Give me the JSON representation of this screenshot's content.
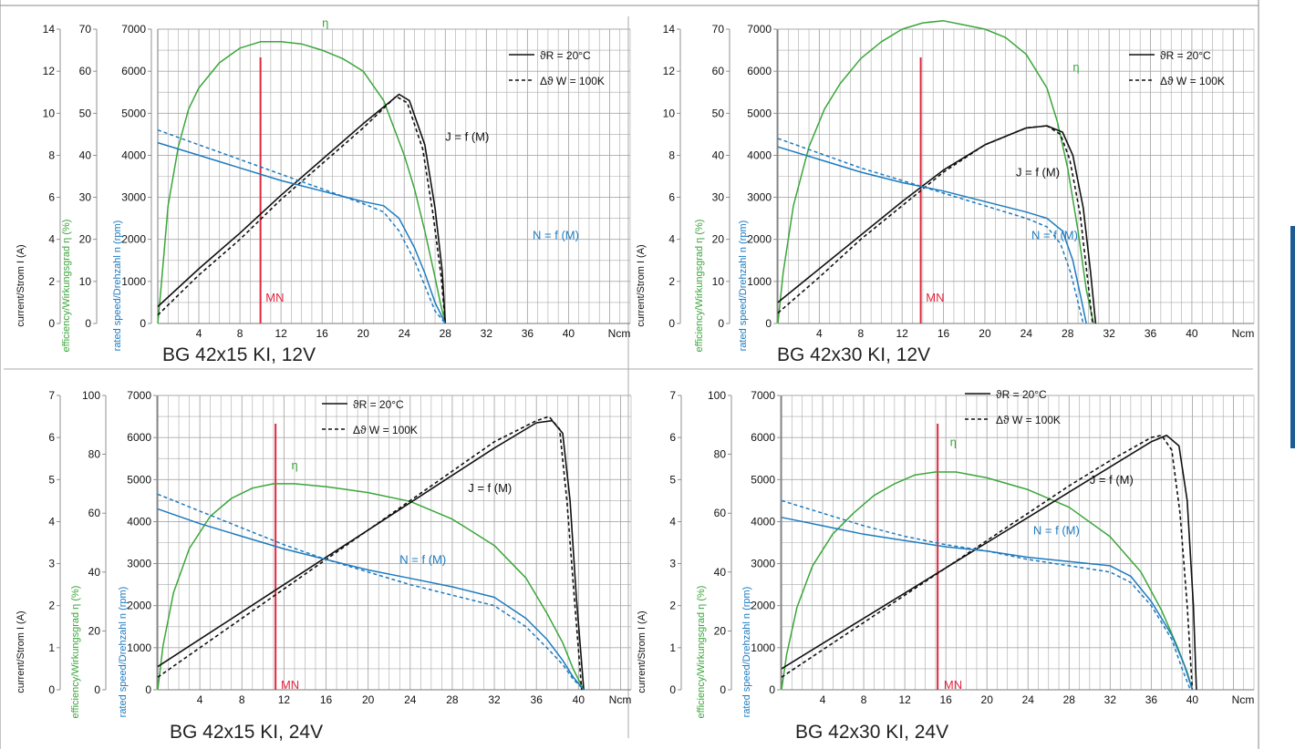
{
  "chart_data": [
    {
      "type": "line",
      "title": "BG 42x15 KI, 12V",
      "x_unit": "Ncm",
      "x_ticks": [
        "4",
        "8",
        "12",
        "16",
        "20",
        "24",
        "28",
        "32",
        "36",
        "40"
      ],
      "xlim": [
        0,
        46
      ],
      "axes": {
        "current": {
          "label": "current/Strom I (A)",
          "ticks": [
            "0",
            "2",
            "4",
            "6",
            "8",
            "10",
            "12",
            "14"
          ],
          "max": 14
        },
        "efficiency": {
          "label": "efficiency/Wirkungsgrad η (%)",
          "ticks": [
            "0",
            "10",
            "20",
            "30",
            "40",
            "50",
            "60",
            "70"
          ],
          "max": 70
        },
        "speed": {
          "label": "rated speed/Drehzahl n (rpm)",
          "ticks": [
            "0",
            "1000",
            "2000",
            "3000",
            "4000",
            "5000",
            "6000",
            "7000"
          ],
          "max": 7000
        }
      },
      "legend": {
        "solid": "ϑR = 20°C",
        "dashed": "Δϑ W = 100K",
        "position": "top-right"
      },
      "rated_torque": {
        "label": "MN",
        "x": 10
      },
      "annotations": {
        "efficiency": "η",
        "current": "J = f (M)",
        "speed": "N = f (M)"
      },
      "series": [
        {
          "name": "η",
          "axis": "efficiency",
          "style": "solid",
          "x": [
            0,
            0.3,
            1,
            2,
            3,
            4,
            6,
            8,
            10,
            12,
            14,
            16,
            18,
            20,
            22,
            24,
            25,
            26,
            27,
            27.5,
            28
          ],
          "y": [
            0,
            8,
            28,
            42,
            51,
            56,
            62,
            65.5,
            67,
            67,
            66.5,
            65,
            63,
            60,
            53,
            40,
            32,
            22,
            11,
            5,
            0
          ]
        },
        {
          "name": "J = f (M)",
          "axis": "current",
          "style": "solid",
          "x": [
            0,
            4,
            8,
            12,
            16,
            20,
            23.5,
            24.5,
            26,
            27,
            27.7,
            28
          ],
          "y": [
            0.8,
            2.6,
            4.3,
            6.1,
            7.8,
            9.5,
            10.9,
            10.6,
            8.5,
            5.5,
            2.5,
            0
          ]
        },
        {
          "name": "J = f (M)",
          "axis": "current",
          "style": "dashed",
          "x": [
            0,
            4,
            8,
            12,
            16,
            20,
            23.2,
            24.3,
            25.8,
            26.8,
            27.6,
            28
          ],
          "y": [
            0.4,
            2.3,
            4.0,
            5.9,
            7.6,
            9.3,
            10.8,
            10.5,
            8.3,
            5.2,
            2.2,
            0
          ]
        },
        {
          "name": "N = f (M)",
          "axis": "speed",
          "style": "solid",
          "x": [
            0,
            4,
            8,
            12,
            16,
            20,
            22,
            23.5,
            25,
            26,
            27,
            28
          ],
          "y": [
            4300,
            4000,
            3700,
            3400,
            3150,
            2900,
            2800,
            2500,
            1800,
            1200,
            500,
            0
          ]
        },
        {
          "name": "N = f (M)",
          "axis": "speed",
          "style": "dashed",
          "x": [
            0,
            4,
            8,
            12,
            16,
            20,
            22,
            23.5,
            25,
            26,
            27,
            28
          ],
          "y": [
            4600,
            4250,
            3900,
            3550,
            3200,
            2850,
            2650,
            2200,
            1500,
            900,
            300,
            0
          ]
        }
      ]
    },
    {
      "type": "line",
      "title": "BG 42x30 KI, 12V",
      "x_unit": "Ncm",
      "x_ticks": [
        "4",
        "8",
        "12",
        "16",
        "20",
        "24",
        "28",
        "32",
        "36",
        "40"
      ],
      "xlim": [
        0,
        46
      ],
      "axes": {
        "current": {
          "label": "current/Strom I (A)",
          "ticks": [
            "0",
            "2",
            "4",
            "6",
            "8",
            "10",
            "12",
            "14"
          ],
          "max": 14
        },
        "efficiency": {
          "label": "efficiency/Wirkungsgrad η (%)",
          "ticks": [
            "0",
            "10",
            "20",
            "30",
            "40",
            "50",
            "60",
            "70"
          ],
          "max": 70
        },
        "speed": {
          "label": "rated speed/Drehzahl n (rpm)",
          "ticks": [
            "0",
            "1000",
            "2000",
            "3000",
            "4000",
            "5000",
            "6000",
            "7000"
          ],
          "max": 7000
        }
      },
      "legend": {
        "solid": "ϑR = 20°C",
        "dashed": "Δϑ W = 100K",
        "position": "top-right"
      },
      "rated_torque": {
        "label": "MN",
        "x": 13.8
      },
      "annotations": {
        "efficiency": "η",
        "current": "J = f (M)",
        "speed": "N = f (M)"
      },
      "series": [
        {
          "name": "η",
          "axis": "efficiency",
          "style": "solid",
          "x": [
            0,
            0.5,
            1.5,
            3,
            4.5,
            6,
            8,
            10,
            12,
            14,
            16,
            18,
            20,
            22,
            24,
            26,
            27,
            28,
            29,
            29.8,
            30.5
          ],
          "y": [
            0,
            12,
            28,
            42,
            51,
            57,
            63,
            67,
            70,
            71.5,
            72,
            71,
            70,
            68,
            64,
            56,
            48,
            37,
            22,
            8,
            0
          ]
        },
        {
          "name": "J = f (M)",
          "axis": "current",
          "style": "solid",
          "x": [
            0,
            4,
            8,
            12,
            16,
            20,
            24,
            26,
            27.5,
            28.5,
            29.5,
            30.2,
            30.7
          ],
          "y": [
            1,
            2.6,
            4.2,
            5.8,
            7.3,
            8.5,
            9.3,
            9.4,
            9.1,
            8,
            5.5,
            2.5,
            0
          ]
        },
        {
          "name": "J = f (M)",
          "axis": "current",
          "style": "dashed",
          "x": [
            0,
            4,
            8,
            12,
            16,
            20,
            24,
            26,
            27.3,
            28.2,
            29.2,
            29.9,
            30.4
          ],
          "y": [
            0.5,
            2.2,
            4.0,
            5.6,
            7.2,
            8.5,
            9.3,
            9.4,
            9.0,
            7.8,
            5.2,
            2.2,
            0
          ]
        },
        {
          "name": "N = f (M)",
          "axis": "speed",
          "style": "solid",
          "x": [
            0,
            4,
            8,
            12,
            16,
            20,
            24,
            26,
            27.5,
            28.5,
            29.2,
            29.8
          ],
          "y": [
            4200,
            3900,
            3600,
            3350,
            3150,
            2900,
            2650,
            2500,
            2200,
            1500,
            700,
            0
          ]
        },
        {
          "name": "N = f (M)",
          "axis": "speed",
          "style": "dashed",
          "x": [
            0,
            4,
            8,
            12,
            16,
            20,
            24,
            26,
            27.3,
            28.3,
            29,
            29.5
          ],
          "y": [
            4400,
            4050,
            3700,
            3400,
            3100,
            2800,
            2500,
            2300,
            1900,
            1200,
            500,
            0
          ]
        }
      ]
    },
    {
      "type": "line",
      "title": "BG 42x15 KI, 24V",
      "x_unit": "Ncm",
      "x_ticks": [
        "4",
        "8",
        "12",
        "16",
        "20",
        "24",
        "28",
        "32",
        "36",
        "40"
      ],
      "xlim": [
        0,
        45
      ],
      "axes": {
        "current": {
          "label": "current/Strom I (A)",
          "ticks": [
            "0",
            "1",
            "2",
            "3",
            "4",
            "5",
            "6",
            "7"
          ],
          "max": 7
        },
        "efficiency": {
          "label": "efficiency/Wirkungsgrad η (%)",
          "ticks": [
            "0",
            "20",
            "40",
            "60",
            "80",
            "100"
          ],
          "max": 100
        },
        "speed": {
          "label": "rated speed/Drehzahl n (rpm)",
          "ticks": [
            "0",
            "1000",
            "2000",
            "3000",
            "4000",
            "5000",
            "6000",
            "7000"
          ],
          "max": 7000
        }
      },
      "legend": {
        "solid": "ϑR = 20°C",
        "dashed": "Δϑ W = 100K",
        "position": "top-center"
      },
      "rated_torque": {
        "label": "MN",
        "x": 11.2
      },
      "annotations": {
        "efficiency": "η",
        "current": "J = f (M)",
        "speed": "N = f (M)"
      },
      "series": [
        {
          "name": "η",
          "axis": "efficiency",
          "style": "solid",
          "x": [
            0,
            0.5,
            1.5,
            3,
            5,
            7,
            9,
            11,
            13,
            16,
            20,
            24,
            28,
            32,
            35,
            37,
            38.5,
            39.5,
            40.5
          ],
          "y": [
            0,
            15,
            33,
            48,
            59,
            65,
            68.5,
            70,
            70,
            69,
            67,
            64,
            58,
            49,
            38,
            26,
            16,
            7,
            0
          ]
        },
        {
          "name": "J = f (M)",
          "axis": "current",
          "style": "solid",
          "x": [
            0,
            4,
            8,
            12,
            16,
            20,
            24,
            28,
            32,
            36,
            37.5,
            38.5,
            39.2,
            39.8,
            40.5
          ],
          "y": [
            0.55,
            1.2,
            1.85,
            2.5,
            3.15,
            3.8,
            4.45,
            5.1,
            5.75,
            6.35,
            6.4,
            6.1,
            4.5,
            2.2,
            0
          ]
        },
        {
          "name": "J = f (M)",
          "axis": "current",
          "style": "dashed",
          "x": [
            0,
            4,
            8,
            12,
            16,
            20,
            24,
            28,
            32,
            36,
            37.2,
            38.2,
            38.9,
            39.6,
            40.3
          ],
          "y": [
            0.3,
            1,
            1.7,
            2.4,
            3.1,
            3.8,
            4.5,
            5.2,
            5.9,
            6.4,
            6.5,
            6.2,
            4.5,
            2.2,
            0
          ]
        },
        {
          "name": "N = f (M)",
          "axis": "speed",
          "style": "solid",
          "x": [
            0,
            4,
            8,
            12,
            16,
            20,
            24,
            28,
            32,
            35,
            37,
            38.5,
            39.5,
            40.5
          ],
          "y": [
            4300,
            3950,
            3650,
            3350,
            3100,
            2850,
            2650,
            2450,
            2200,
            1700,
            1200,
            700,
            300,
            0
          ]
        },
        {
          "name": "N = f (M)",
          "axis": "speed",
          "style": "dashed",
          "x": [
            0,
            4,
            8,
            12,
            16,
            20,
            24,
            28,
            32,
            35,
            37,
            38.5,
            39.5,
            40.5
          ],
          "y": [
            4650,
            4250,
            3850,
            3450,
            3100,
            2800,
            2500,
            2250,
            2000,
            1500,
            1000,
            600,
            250,
            0
          ]
        }
      ]
    },
    {
      "type": "line",
      "title": "BG 42x30 KI, 24V",
      "x_unit": "Ncm",
      "x_ticks": [
        "4",
        "8",
        "12",
        "16",
        "20",
        "24",
        "28",
        "32",
        "36",
        "40"
      ],
      "xlim": [
        0,
        46
      ],
      "axes": {
        "current": {
          "label": "current/Strom I (A)",
          "ticks": [
            "0",
            "1",
            "2",
            "3",
            "4",
            "5",
            "6",
            "7"
          ],
          "max": 7
        },
        "efficiency": {
          "label": "efficiency/Wirkungsgrad η (%)",
          "ticks": [
            "0",
            "20",
            "40",
            "60",
            "80",
            "100"
          ],
          "max": 100
        },
        "speed": {
          "label": "rated speed/Drehzahl n (rpm)",
          "ticks": [
            "0",
            "1000",
            "2000",
            "3000",
            "4000",
            "5000",
            "6000",
            "7000"
          ],
          "max": 7000
        }
      },
      "legend": {
        "solid": "ϑR = 20°C",
        "dashed": "Δϑ W = 100K",
        "position": "top-center"
      },
      "rated_torque": {
        "label": "MN",
        "x": 15.2
      },
      "annotations": {
        "efficiency": "η",
        "current": "J = f (M)",
        "speed": "N = f (M)"
      },
      "series": [
        {
          "name": "η",
          "axis": "efficiency",
          "style": "solid",
          "x": [
            0,
            0.5,
            1.5,
            3,
            5,
            7,
            9,
            11,
            13,
            15,
            17,
            20,
            24,
            28,
            32,
            35,
            37,
            38.5,
            39.5,
            40
          ],
          "y": [
            0,
            12,
            28,
            42,
            53,
            60,
            66,
            70,
            73,
            74,
            74,
            72,
            68,
            62,
            52,
            40,
            27,
            15,
            6,
            0
          ]
        },
        {
          "name": "J = f (M)",
          "axis": "current",
          "style": "solid",
          "x": [
            0,
            4,
            8,
            12,
            16,
            20,
            24,
            28,
            32,
            36,
            37.5,
            38.7,
            39.5,
            40.1,
            40.4
          ],
          "y": [
            0.5,
            1.1,
            1.7,
            2.3,
            2.9,
            3.5,
            4.1,
            4.7,
            5.3,
            5.9,
            6.05,
            5.8,
            4.5,
            2,
            0
          ]
        },
        {
          "name": "J = f (M)",
          "axis": "current",
          "style": "dashed",
          "x": [
            0,
            4,
            8,
            12,
            16,
            20,
            24,
            28,
            32,
            36,
            37,
            38,
            38.8,
            39.5,
            40
          ],
          "y": [
            0.3,
            0.95,
            1.6,
            2.25,
            2.9,
            3.55,
            4.2,
            4.85,
            5.45,
            6,
            6.05,
            5.7,
            4.2,
            2,
            0
          ]
        },
        {
          "name": "N = f (M)",
          "axis": "speed",
          "style": "solid",
          "x": [
            0,
            4,
            8,
            12,
            16,
            20,
            24,
            28,
            32,
            34,
            36,
            38,
            39.2,
            40
          ],
          "y": [
            4100,
            3900,
            3700,
            3550,
            3400,
            3300,
            3150,
            3050,
            2950,
            2700,
            2100,
            1300,
            600,
            0
          ]
        },
        {
          "name": "N = f (M)",
          "axis": "speed",
          "style": "dashed",
          "x": [
            0,
            4,
            8,
            12,
            16,
            20,
            24,
            28,
            32,
            34,
            36,
            38,
            39,
            39.8
          ],
          "y": [
            4500,
            4200,
            3900,
            3650,
            3450,
            3300,
            3100,
            2950,
            2800,
            2550,
            2000,
            1200,
            500,
            0
          ]
        }
      ]
    }
  ],
  "colors": {
    "efficiency": "#3aa63a",
    "current": "#111111",
    "speed": "#1c7bc0",
    "rated": "#e3263f",
    "grid": "#a9a9a9",
    "tab": "#1e5b93"
  }
}
